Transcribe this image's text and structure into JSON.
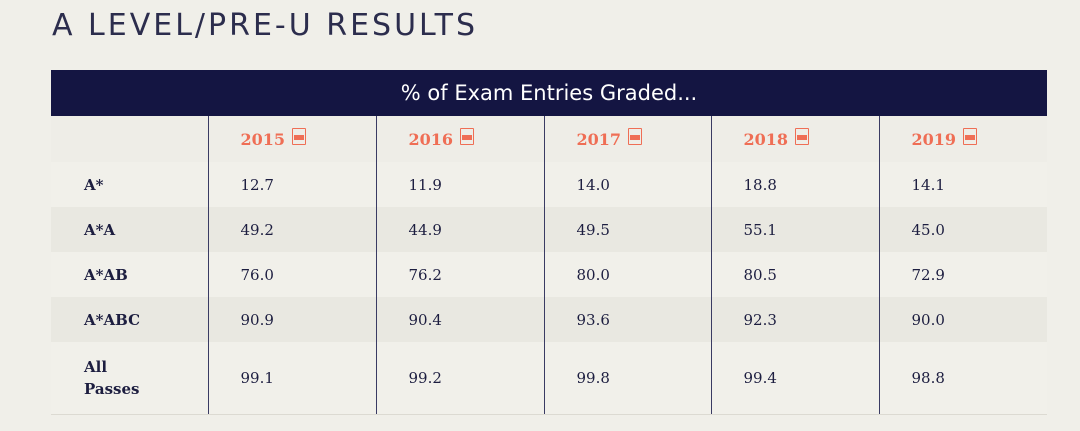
{
  "page": {
    "title": "A LEVEL/PRE-U RESULTS"
  },
  "table": {
    "caption": "% of Exam Entries Graded...",
    "years": [
      {
        "label": "2015",
        "icon": "pdf-file-icon"
      },
      {
        "label": "2016",
        "icon": "pdf-file-icon"
      },
      {
        "label": "2017",
        "icon": "pdf-file-icon"
      },
      {
        "label": "2018",
        "icon": "pdf-file-icon"
      },
      {
        "label": "2019",
        "icon": "pdf-file-icon"
      }
    ],
    "rows": [
      {
        "label": "A*",
        "values": [
          "12.7",
          "11.9",
          "14.0",
          "18.8",
          "14.1"
        ]
      },
      {
        "label": "A*A",
        "values": [
          "49.2",
          "44.9",
          "49.5",
          "55.1",
          "45.0"
        ]
      },
      {
        "label": "A*AB",
        "values": [
          "76.0",
          "76.2",
          "80.0",
          "80.5",
          "72.9"
        ]
      },
      {
        "label": "A*ABC",
        "values": [
          "90.9",
          "90.4",
          "93.6",
          "92.3",
          "90.0"
        ]
      },
      {
        "label": "All Passes",
        "values": [
          "99.1",
          "99.2",
          "99.8",
          "99.4",
          "98.8"
        ]
      }
    ]
  },
  "colors": {
    "header_bg": "#141542",
    "year_accent": "#ef6e55",
    "title_text": "#2c2d4d",
    "page_bg": "#f0efe9"
  }
}
